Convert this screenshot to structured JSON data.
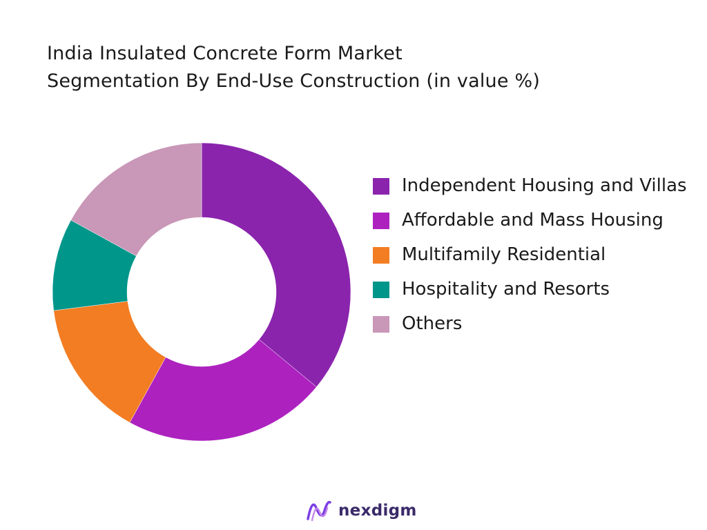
{
  "chart_data": {
    "type": "pie",
    "donut": true,
    "title": "India Insulated Concrete Form Market Segmentation By End-Use Construction (in value %)",
    "title_lines": [
      "India Insulated Concrete Form Market",
      "Segmentation By End-Use Construction (in value %)"
    ],
    "categories": [
      "Independent Housing and Villas",
      "Affordable and Mass Housing",
      "Multifamily Residential",
      "Hospitality and Resorts",
      "Others"
    ],
    "values": [
      36,
      22,
      15,
      10,
      17
    ],
    "colors": [
      "#8a24ad",
      "#ad22bf",
      "#f27d22",
      "#00968a",
      "#c997b8"
    ],
    "legend_position": "right"
  },
  "logo": {
    "text": "nexdigm",
    "color": "#7b3fe4"
  }
}
